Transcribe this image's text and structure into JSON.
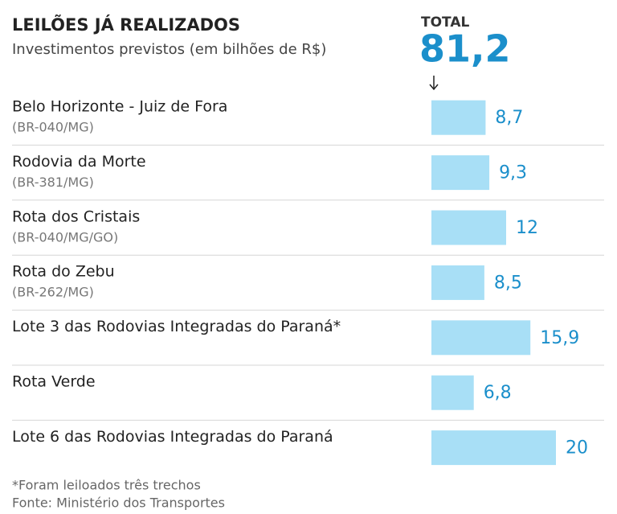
{
  "chart_data": {
    "type": "bar",
    "orientation": "horizontal",
    "title": "LEILÕES JÁ REALIZADOS",
    "subtitle": "Investimentos previstos (em bilhões de R$)",
    "total": {
      "title": "TOTAL",
      "value": 81.2,
      "label": "81,2"
    },
    "categories": [
      "Belo Horizonte - Juiz de Fora",
      "Rodovia da Morte",
      "Rota dos Cristais",
      "Rota do Zebu",
      "Lote 3 das Rodovias Integradas do Paraná*",
      "Rota Verde",
      "Lote 6 das Rodovias Integradas do Paraná"
    ],
    "sublabels": [
      "(BR-040/MG)",
      "(BR-381/MG)",
      "(BR-040/MG/GO)",
      "(BR-262/MG)",
      null,
      null,
      null
    ],
    "values": [
      8.7,
      9.3,
      12,
      8.5,
      15.9,
      6.8,
      20
    ],
    "value_labels": [
      "8,7",
      "9,3",
      "12",
      "8,5",
      "15,9",
      "6,8",
      "20"
    ],
    "color": "#a8dff6",
    "label_color": "#1b8fcb",
    "notes": [
      "*Foram leiloados três trechos",
      "Fonte: Ministério dos Transportes"
    ]
  }
}
